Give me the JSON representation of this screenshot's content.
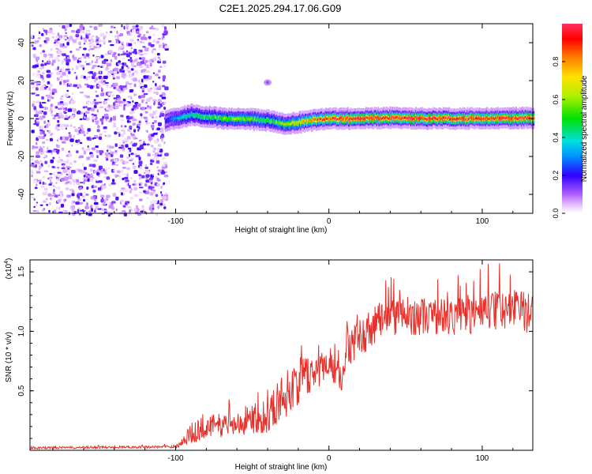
{
  "title": "C2E1.2025.294.17.06.G09",
  "chart_data": [
    {
      "type": "heatmap",
      "xlabel": "Height of straight line (km)",
      "ylabel": "Frequency (Hz)",
      "xlim": [
        -195,
        133
      ],
      "ylim": [
        -50,
        50
      ],
      "xticks": [
        {
          "value": -100,
          "label": "-100"
        },
        {
          "value": 0,
          "label": "0"
        },
        {
          "value": 100,
          "label": "100"
        }
      ],
      "yticks": [
        {
          "value": -40,
          "label": "-40"
        },
        {
          "value": -20,
          "label": "-20"
        },
        {
          "value": 0,
          "label": "0"
        },
        {
          "value": 20,
          "label": "20"
        },
        {
          "value": 40,
          "label": "40"
        }
      ],
      "noise_region_km": [
        -195,
        -107
      ],
      "trace": {
        "x": [
          -107,
          -100,
          -90,
          -80,
          -70,
          -60,
          -50,
          -40,
          -30,
          -20,
          -10,
          0,
          20,
          40,
          60,
          80,
          100,
          120,
          133
        ],
        "freq": [
          -1,
          0,
          2,
          1,
          0,
          0,
          -0.5,
          -1,
          -3,
          -2,
          -1,
          0,
          0,
          0.3,
          0,
          0,
          0,
          0.2,
          0.2
        ],
        "amplitude": [
          0.2,
          0.35,
          0.45,
          0.5,
          0.55,
          0.6,
          0.55,
          0.5,
          0.6,
          0.7,
          0.8,
          0.9,
          0.95,
          0.95,
          0.95,
          0.95,
          0.95,
          0.95,
          0.95
        ]
      },
      "extra_blip": {
        "x": -40,
        "freq": 19
      },
      "colorbar": {
        "label": "Normalized spectral amplitude",
        "range": [
          0,
          1
        ],
        "ticks": [
          {
            "value": 0.0,
            "label": "0.0"
          },
          {
            "value": 0.2,
            "label": "0.2"
          },
          {
            "value": 0.4,
            "label": "0.4"
          },
          {
            "value": 0.6,
            "label": "0.6"
          },
          {
            "value": 0.8,
            "label": "0.8"
          }
        ],
        "stops": [
          {
            "at": 0.0,
            "color": "#ffffff"
          },
          {
            "at": 0.04,
            "color": "#e8c8ff"
          },
          {
            "at": 0.1,
            "color": "#b060ff"
          },
          {
            "at": 0.2,
            "color": "#3000ff"
          },
          {
            "at": 0.3,
            "color": "#0090ff"
          },
          {
            "at": 0.38,
            "color": "#00e0e0"
          },
          {
            "at": 0.5,
            "color": "#00e000"
          },
          {
            "at": 0.62,
            "color": "#b0f000"
          },
          {
            "at": 0.72,
            "color": "#ffe000"
          },
          {
            "at": 0.82,
            "color": "#ff8000"
          },
          {
            "at": 0.92,
            "color": "#ff0000"
          },
          {
            "at": 1.0,
            "color": "#ff3060"
          }
        ]
      }
    },
    {
      "type": "line",
      "xlabel": "Height of straight line (km)",
      "ylabel": "SNR (10 * v/v)",
      "yscale_label": "(x10",
      "yscale_exp": "4",
      "yscale_close": ")",
      "xlim": [
        -195,
        133
      ],
      "ylim": [
        0,
        1.6
      ],
      "xticks": [
        {
          "value": -100,
          "label": "-100"
        },
        {
          "value": 0,
          "label": "0"
        },
        {
          "value": 100,
          "label": "100"
        }
      ],
      "yticks": [
        {
          "value": 0.5,
          "label": "0.5"
        },
        {
          "value": 1.0,
          "label": "1.0"
        },
        {
          "value": 1.5,
          "label": "1.5"
        }
      ],
      "line_color": "#e8302a",
      "envelope": {
        "x": [
          -195,
          -100,
          -95,
          -90,
          -80,
          -60,
          -40,
          -30,
          -20,
          -10,
          0,
          6,
          8,
          10,
          20,
          30,
          40,
          60,
          80,
          100,
          120,
          133
        ],
        "mean": [
          0.02,
          0.03,
          0.08,
          0.14,
          0.2,
          0.22,
          0.3,
          0.45,
          0.58,
          0.65,
          0.75,
          0.72,
          0.55,
          0.8,
          0.95,
          1.05,
          1.12,
          1.13,
          1.12,
          1.15,
          1.18,
          1.15
        ],
        "spread": [
          0.01,
          0.01,
          0.05,
          0.09,
          0.1,
          0.1,
          0.15,
          0.2,
          0.2,
          0.15,
          0.15,
          0.2,
          0.1,
          0.15,
          0.16,
          0.17,
          0.17,
          0.16,
          0.16,
          0.17,
          0.17,
          0.17
        ]
      }
    }
  ]
}
